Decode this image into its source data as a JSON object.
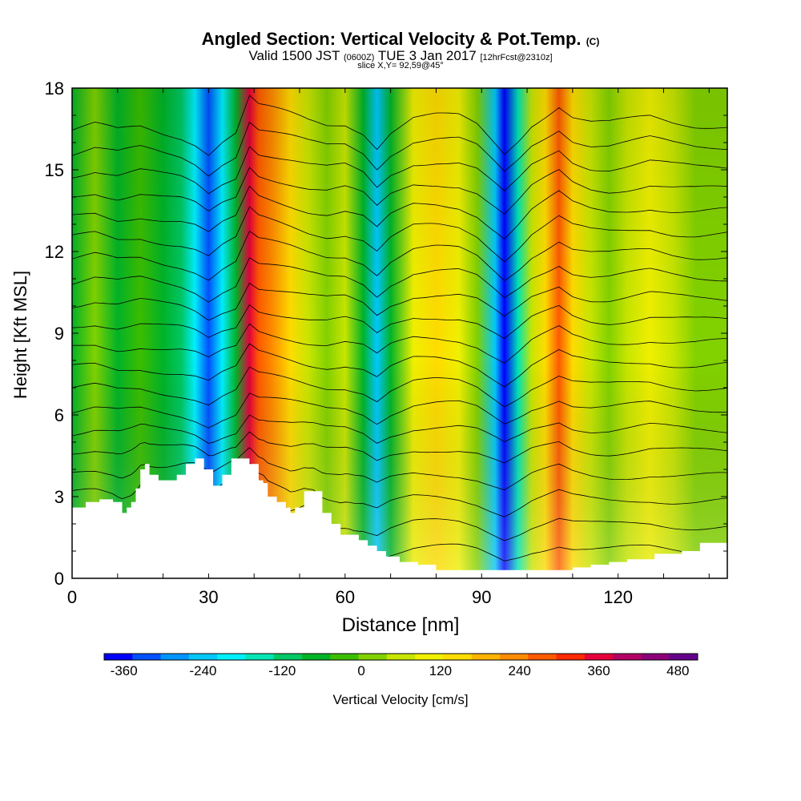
{
  "chart_data": {
    "type": "heatmap",
    "title": "Angled Section: Vertical Velocity & Pot.Temp.",
    "title_unit": "(C)",
    "subtitle_valid": "Valid 1500 JST",
    "subtitle_utc": "(0600Z)",
    "subtitle_date": "TUE 3 Jan 2017",
    "subtitle_fcst": "[12hrFcst@2310z]",
    "slice_label": "slice X,Y= 92,59@45°",
    "xlabel": "Distance [nm]",
    "ylabel": "Height [Kft MSL]",
    "xlim": [
      0,
      144
    ],
    "ylim": [
      0,
      18
    ],
    "x_ticks": [
      "0",
      "30",
      "60",
      "90",
      "120"
    ],
    "x_tick_values": [
      0,
      30,
      60,
      90,
      120
    ],
    "y_ticks": [
      "0",
      "3",
      "6",
      "9",
      "12",
      "15",
      "18"
    ],
    "y_tick_values": [
      0,
      3,
      6,
      9,
      12,
      15,
      18
    ],
    "colorbar": {
      "label": "Vertical Velocity [cm/s]",
      "tick_labels": [
        "-360",
        "-240",
        "-120",
        "0",
        "120",
        "240",
        "360",
        "480"
      ],
      "tick_values": [
        -360,
        -240,
        -120,
        0,
        120,
        240,
        360,
        480
      ],
      "min": -390,
      "max": 510,
      "colors": [
        "#0000ff",
        "#0050ff",
        "#0096ff",
        "#00c8ff",
        "#00f0ff",
        "#00e6b4",
        "#00c864",
        "#00b428",
        "#3cbe00",
        "#82d200",
        "#c8e600",
        "#f0f000",
        "#ffdc00",
        "#ffb400",
        "#ff8c00",
        "#ff5a00",
        "#ff2800",
        "#e6003c",
        "#b40064",
        "#8c0078",
        "#64008c"
      ]
    },
    "columns_x": [
      0,
      5,
      10,
      15,
      20,
      24,
      27,
      30,
      33,
      36,
      39,
      41,
      44,
      48,
      52,
      56,
      60,
      64,
      67,
      70,
      75,
      80,
      85,
      89,
      93,
      95,
      98,
      101,
      104,
      107,
      110,
      114,
      118,
      122,
      127,
      132,
      137,
      144
    ],
    "columns_w": [
      -60,
      10,
      -70,
      -20,
      -90,
      -130,
      -200,
      -330,
      -180,
      -80,
      380,
      260,
      210,
      140,
      60,
      10,
      40,
      -60,
      -250,
      -60,
      110,
      130,
      110,
      0,
      -230,
      -350,
      -170,
      40,
      160,
      280,
      130,
      50,
      30,
      60,
      110,
      50,
      20,
      30
    ],
    "theta_levels": [
      -12,
      -14,
      -16,
      -18,
      -20,
      -22,
      -24,
      -26,
      -28,
      -30,
      -32,
      -34,
      -36,
      -38,
      -40,
      -42,
      -44,
      -46,
      -48,
      -50
    ],
    "theta_base_heights": [
      1.0,
      1.9,
      2.8,
      3.7,
      4.6,
      5.4,
      6.2,
      7.0,
      7.8,
      8.6,
      9.4,
      10.2,
      11.0,
      11.8,
      12.6,
      13.4,
      14.2,
      15.0,
      15.8,
      16.6
    ],
    "terrain_x": [
      0,
      3,
      6,
      9,
      11,
      12,
      13,
      14,
      15,
      16,
      17,
      19,
      21,
      23,
      25,
      27,
      29,
      31,
      33,
      35,
      37,
      39,
      41,
      42,
      43,
      45,
      47,
      48,
      49,
      51,
      53,
      55,
      57,
      59,
      61,
      63,
      65,
      67,
      69,
      72,
      76,
      80,
      85,
      90,
      95,
      99,
      102,
      105,
      107,
      110,
      114,
      118,
      122,
      128,
      134,
      138,
      144
    ],
    "terrain_height": [
      2.6,
      2.8,
      2.9,
      2.8,
      2.4,
      2.6,
      2.8,
      3.3,
      4.0,
      4.2,
      3.8,
      3.6,
      3.6,
      3.8,
      4.2,
      4.4,
      4.0,
      3.4,
      3.8,
      4.4,
      4.4,
      4.2,
      3.6,
      3.5,
      3.0,
      2.8,
      2.6,
      2.4,
      2.6,
      3.2,
      3.2,
      2.4,
      2.0,
      1.6,
      1.6,
      1.4,
      1.2,
      1.0,
      0.8,
      0.6,
      0.5,
      0.3,
      0.3,
      0.3,
      0.3,
      0.3,
      0.3,
      0.3,
      0.3,
      0.4,
      0.5,
      0.6,
      0.7,
      0.9,
      1.0,
      1.3,
      1.3
    ]
  }
}
